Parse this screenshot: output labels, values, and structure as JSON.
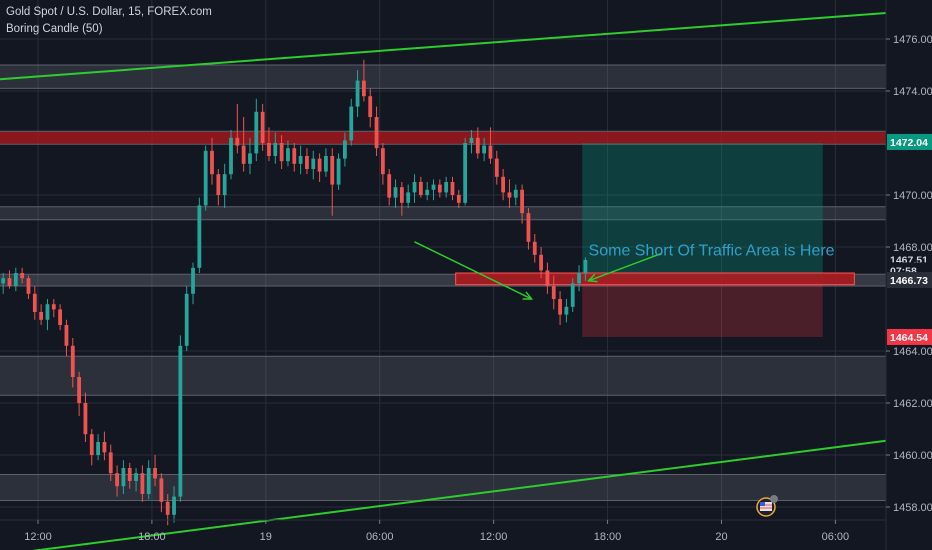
{
  "chart_data": {
    "type": "candlestick",
    "title": "Gold Spot / U.S. Dollar, 15, FOREX.com",
    "indicator": "Boring Candle (50)",
    "y_range": [
      1457.5,
      1477.5
    ],
    "x_index_range": [
      0,
      140
    ],
    "yticks": [
      1458.0,
      1460.0,
      1462.0,
      1464.0,
      1468.0,
      1470.0,
      1474.0,
      1476.0
    ],
    "xticks": [
      {
        "label": "12:00",
        "index": 6
      },
      {
        "label": "18:00",
        "index": 24
      },
      {
        "label": "19",
        "index": 42
      },
      {
        "label": "06:00",
        "index": 60
      },
      {
        "label": "12:00",
        "index": 78
      },
      {
        "label": "18:00",
        "index": 96
      },
      {
        "label": "20",
        "index": 114
      },
      {
        "label": "06:00",
        "index": 132
      }
    ],
    "price_tags": [
      {
        "label": "1472.04",
        "value": 1472.04,
        "color": "#089981",
        "text_color": "#ffffff"
      },
      {
        "label": "1467.51",
        "value": 1467.51,
        "color": "#131722",
        "text_color": "#d1d4dc"
      },
      {
        "label": "07:58",
        "value": 1467.1,
        "color": "#131722",
        "text_color": "#d1d4dc"
      },
      {
        "label": "1466.73",
        "value": 1466.73,
        "color": "#2a2e39",
        "text_color": "#ffffff"
      },
      {
        "label": "1464.54",
        "value": 1464.54,
        "color": "#f23645",
        "text_color": "#ffffff"
      }
    ],
    "zones": [
      {
        "y1": 1475.0,
        "y2": 1474.1,
        "x1": 0,
        "x2": 140,
        "color": "rgba(120,123,134,0.25)"
      },
      {
        "y1": 1472.45,
        "y2": 1471.95,
        "x1": 0,
        "x2": 140,
        "color": "rgba(178,24,28,0.75)"
      },
      {
        "y1": 1469.55,
        "y2": 1469.05,
        "x1": 0,
        "x2": 140,
        "color": "rgba(120,123,134,0.25)"
      },
      {
        "y1": 1466.95,
        "y2": 1466.5,
        "x1": 0,
        "x2": 140,
        "color": "rgba(120,123,134,0.35)"
      },
      {
        "y1": 1463.8,
        "y2": 1462.3,
        "x1": 0,
        "x2": 140,
        "color": "rgba(120,123,134,0.25)"
      },
      {
        "y1": 1459.25,
        "y2": 1458.25,
        "x1": 0,
        "x2": 140,
        "color": "rgba(120,123,134,0.25)"
      }
    ],
    "zone_lines": [
      1475.0,
      1474.1,
      1472.45,
      1471.95,
      1469.55,
      1469.05,
      1466.95,
      1466.5,
      1463.8,
      1462.3,
      1459.25,
      1458.25
    ],
    "traffic_zone": {
      "y1": 1467.0,
      "y2": 1466.55,
      "x1": 72,
      "x2": 135,
      "color": "rgba(178,24,28,0.85)"
    },
    "position": {
      "entry": 1466.73,
      "target": 1472.0,
      "stop": 1464.54,
      "x1": 92,
      "x2": 130,
      "profit_color": "rgba(8,153,129,0.3)",
      "loss_color": "rgba(242,54,69,0.25)"
    },
    "trend_lines": [
      {
        "x1": 0,
        "y1": 1474.45,
        "x2": 140,
        "y2": 1477.0,
        "color": "#2ecc2e"
      },
      {
        "x1": 0,
        "y1": 1456.15,
        "x2": 140,
        "y2": 1460.55,
        "color": "#2ecc2e"
      }
    ],
    "annotation": {
      "text": "Some Short Of Traffic Area is Here",
      "x": 93,
      "y": 1467.9
    },
    "arrows": [
      {
        "x1": 65.5,
        "y1": 1468.2,
        "x2": 84,
        "y2": 1466.0
      },
      {
        "x1": 104.5,
        "y1": 1467.75,
        "x2": 93,
        "y2": 1466.7
      }
    ],
    "colors": {
      "up": "#26a69a",
      "down": "#ef5350",
      "grid": "#2a2e39",
      "background": "#131722"
    },
    "candles": [
      [
        0,
        1466.6,
        1467.0,
        1466.2,
        1466.8
      ],
      [
        1,
        1466.8,
        1467.1,
        1466.4,
        1466.5
      ],
      [
        2,
        1466.5,
        1467.2,
        1466.3,
        1467.0
      ],
      [
        3,
        1467.0,
        1467.2,
        1466.6,
        1466.8
      ],
      [
        4,
        1466.8,
        1466.9,
        1466.0,
        1466.2
      ],
      [
        5,
        1466.2,
        1466.5,
        1465.2,
        1465.5
      ],
      [
        6,
        1465.5,
        1465.8,
        1465.0,
        1465.2
      ],
      [
        7,
        1465.2,
        1466.0,
        1464.8,
        1465.8
      ],
      [
        8,
        1465.8,
        1466.0,
        1465.3,
        1465.6
      ],
      [
        9,
        1465.6,
        1465.8,
        1464.8,
        1465.0
      ],
      [
        10,
        1465.0,
        1465.2,
        1463.8,
        1464.2
      ],
      [
        11,
        1464.2,
        1464.5,
        1462.6,
        1463.0
      ],
      [
        12,
        1463.0,
        1463.2,
        1461.5,
        1462.0
      ],
      [
        13,
        1462.0,
        1462.4,
        1460.5,
        1460.8
      ],
      [
        14,
        1460.8,
        1461.0,
        1459.6,
        1460.0
      ],
      [
        15,
        1460.0,
        1460.8,
        1459.8,
        1460.5
      ],
      [
        16,
        1460.5,
        1460.9,
        1459.8,
        1460.1
      ],
      [
        17,
        1460.1,
        1460.4,
        1459.0,
        1459.3
      ],
      [
        18,
        1459.3,
        1459.6,
        1458.4,
        1458.8
      ],
      [
        19,
        1458.8,
        1459.8,
        1458.5,
        1459.5
      ],
      [
        20,
        1459.5,
        1459.7,
        1458.7,
        1459.0
      ],
      [
        21,
        1459.0,
        1459.5,
        1458.6,
        1459.3
      ],
      [
        22,
        1459.3,
        1459.6,
        1458.2,
        1458.5
      ],
      [
        23,
        1458.5,
        1459.8,
        1458.3,
        1459.5
      ],
      [
        24,
        1459.5,
        1460.0,
        1458.8,
        1459.1
      ],
      [
        25,
        1459.1,
        1459.3,
        1457.8,
        1458.2
      ],
      [
        26,
        1458.2,
        1458.5,
        1457.3,
        1457.7
      ],
      [
        27,
        1457.7,
        1458.8,
        1457.4,
        1458.4
      ],
      [
        28,
        1458.4,
        1464.6,
        1458.2,
        1464.2
      ],
      [
        29,
        1464.2,
        1466.5,
        1464.0,
        1466.2
      ],
      [
        30,
        1466.2,
        1467.4,
        1465.8,
        1467.2
      ],
      [
        31,
        1467.2,
        1469.9,
        1467.0,
        1469.6
      ],
      [
        32,
        1469.6,
        1471.9,
        1469.4,
        1471.7
      ],
      [
        33,
        1471.7,
        1472.2,
        1470.4,
        1470.8
      ],
      [
        34,
        1470.8,
        1471.0,
        1469.6,
        1470.0
      ],
      [
        35,
        1470.0,
        1471.2,
        1469.5,
        1470.8
      ],
      [
        36,
        1470.8,
        1472.5,
        1470.6,
        1472.2
      ],
      [
        37,
        1472.2,
        1473.5,
        1471.6,
        1471.9
      ],
      [
        38,
        1471.9,
        1473.0,
        1470.9,
        1471.2
      ],
      [
        39,
        1471.2,
        1472.2,
        1470.8,
        1471.6
      ],
      [
        40,
        1471.6,
        1473.7,
        1471.3,
        1473.2
      ],
      [
        41,
        1473.2,
        1473.5,
        1471.7,
        1472.0
      ],
      [
        42,
        1472.0,
        1472.6,
        1471.3,
        1471.5
      ],
      [
        43,
        1471.5,
        1472.4,
        1471.2,
        1472.0
      ],
      [
        44,
        1472.0,
        1472.3,
        1471.0,
        1471.3
      ],
      [
        45,
        1471.3,
        1472.1,
        1471.1,
        1471.8
      ],
      [
        46,
        1471.8,
        1472.0,
        1470.9,
        1471.2
      ],
      [
        47,
        1471.2,
        1471.9,
        1470.8,
        1471.5
      ],
      [
        48,
        1471.5,
        1471.8,
        1470.8,
        1471.0
      ],
      [
        49,
        1471.0,
        1471.7,
        1470.6,
        1471.4
      ],
      [
        50,
        1471.4,
        1471.6,
        1470.5,
        1470.9
      ],
      [
        51,
        1470.9,
        1471.8,
        1470.7,
        1471.5
      ],
      [
        52,
        1471.5,
        1471.8,
        1469.2,
        1470.4
      ],
      [
        53,
        1470.4,
        1471.6,
        1470.2,
        1471.4
      ],
      [
        54,
        1471.4,
        1472.4,
        1471.1,
        1472.1
      ],
      [
        55,
        1472.1,
        1473.7,
        1471.9,
        1473.4
      ],
      [
        56,
        1473.4,
        1474.8,
        1473.0,
        1474.4
      ],
      [
        57,
        1474.4,
        1475.2,
        1473.6,
        1473.8
      ],
      [
        58,
        1473.8,
        1474.1,
        1472.6,
        1473.0
      ],
      [
        59,
        1473.0,
        1473.4,
        1471.5,
        1471.8
      ],
      [
        60,
        1471.8,
        1472.0,
        1470.4,
        1470.8
      ],
      [
        61,
        1470.8,
        1471.0,
        1469.6,
        1469.9
      ],
      [
        62,
        1469.9,
        1470.6,
        1469.5,
        1470.3
      ],
      [
        63,
        1470.3,
        1470.5,
        1469.2,
        1469.7
      ],
      [
        64,
        1469.7,
        1470.4,
        1469.5,
        1470.1
      ],
      [
        65,
        1470.1,
        1470.8,
        1469.7,
        1470.5
      ],
      [
        66,
        1470.5,
        1470.7,
        1469.9,
        1470.0
      ],
      [
        67,
        1470.0,
        1470.5,
        1469.8,
        1470.2
      ],
      [
        68,
        1470.2,
        1470.6,
        1469.8,
        1470.4
      ],
      [
        69,
        1470.4,
        1470.6,
        1469.9,
        1470.1
      ],
      [
        70,
        1470.1,
        1470.7,
        1469.9,
        1470.5
      ],
      [
        71,
        1470.5,
        1470.7,
        1469.8,
        1470.0
      ],
      [
        72,
        1470.0,
        1470.2,
        1469.5,
        1469.7
      ],
      [
        73,
        1469.7,
        1472.2,
        1469.6,
        1472.0
      ],
      [
        74,
        1472.0,
        1472.5,
        1471.6,
        1472.2
      ],
      [
        75,
        1472.2,
        1472.6,
        1471.4,
        1471.6
      ],
      [
        76,
        1471.6,
        1472.2,
        1471.3,
        1471.9
      ],
      [
        77,
        1471.9,
        1472.6,
        1471.2,
        1471.4
      ],
      [
        78,
        1471.4,
        1471.7,
        1470.4,
        1470.7
      ],
      [
        79,
        1470.7,
        1471.0,
        1469.8,
        1470.1
      ],
      [
        80,
        1470.1,
        1470.6,
        1469.5,
        1469.9
      ],
      [
        81,
        1469.9,
        1470.4,
        1469.6,
        1470.2
      ],
      [
        82,
        1470.2,
        1470.4,
        1468.9,
        1469.3
      ],
      [
        83,
        1469.3,
        1469.5,
        1467.9,
        1468.2
      ],
      [
        84,
        1468.2,
        1468.5,
        1467.4,
        1467.7
      ],
      [
        85,
        1467.7,
        1468.0,
        1466.8,
        1467.1
      ],
      [
        86,
        1467.1,
        1467.4,
        1466.2,
        1466.5
      ],
      [
        87,
        1466.5,
        1466.9,
        1465.6,
        1466.0
      ],
      [
        88,
        1466.0,
        1466.3,
        1465.0,
        1465.4
      ],
      [
        89,
        1465.4,
        1466.0,
        1465.1,
        1465.7
      ],
      [
        90,
        1465.7,
        1466.8,
        1465.5,
        1466.6
      ],
      [
        91,
        1466.6,
        1467.3,
        1466.3,
        1467.0
      ],
      [
        92,
        1467.0,
        1467.6,
        1466.7,
        1467.5
      ]
    ]
  }
}
